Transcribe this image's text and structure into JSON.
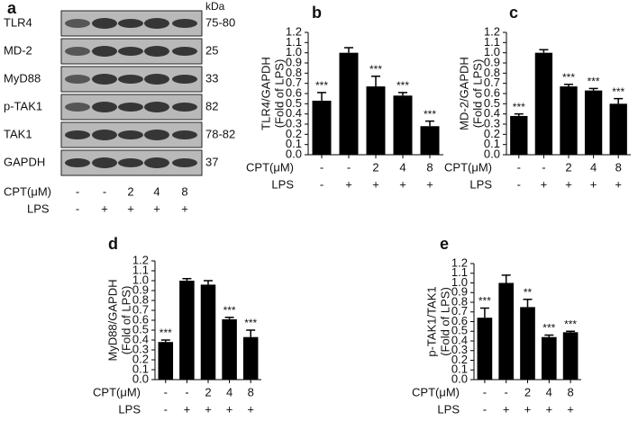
{
  "panel_a": {
    "letter": "a",
    "unit": "kDa",
    "rows": [
      {
        "name": "TLR4",
        "kda": "75-80"
      },
      {
        "name": "MD-2",
        "kda": "25"
      },
      {
        "name": "MyD88",
        "kda": "33"
      },
      {
        "name": "p-TAK1",
        "kda": "82"
      },
      {
        "name": "TAK1",
        "kda": "78-82"
      },
      {
        "name": "GAPDH",
        "kda": "37"
      }
    ],
    "cpt_label": "CPT(μM)",
    "cpt": [
      "-",
      "-",
      "2",
      "4",
      "8"
    ],
    "lps_label": "LPS",
    "lps": [
      "-",
      "+",
      "+",
      "+",
      "+"
    ]
  },
  "chart_data": [
    {
      "type": "bar",
      "letter": "b",
      "y_label": "TLR4/GAPDH",
      "y_label2": "(Fold of LPS)",
      "cpt_label": "CPT(μM)",
      "categories": [
        "-",
        "-",
        "2",
        "4",
        "8"
      ],
      "lps_label": "LPS",
      "lps": [
        "-",
        "+",
        "+",
        "+",
        "+"
      ],
      "values": [
        0.53,
        1.0,
        0.67,
        0.58,
        0.28
      ],
      "errors": [
        0.08,
        0.05,
        0.1,
        0.03,
        0.05
      ],
      "significance": [
        "***",
        null,
        "***",
        "***",
        "***"
      ],
      "color": "#000000",
      "ylim": [
        0,
        1.2
      ],
      "yticks": [
        {
          "value": 0,
          "label": "0.0"
        },
        0.1,
        0.2,
        0.3,
        0.4,
        0.5,
        0.6,
        0.7,
        0.8,
        0.9,
        {
          "value": 1,
          "label": "1.0"
        },
        1.1,
        1.2
      ]
    },
    {
      "type": "bar",
      "letter": "c",
      "y_label": "MD-2/GAPDH",
      "y_label2": "(Fold of LPS)",
      "cpt_label": "CPT(μM)",
      "categories": [
        "-",
        "-",
        "2",
        "4",
        "8"
      ],
      "lps_label": "LPS",
      "lps": [
        "-",
        "+",
        "+",
        "+",
        "+"
      ],
      "values": [
        0.38,
        1.0,
        0.67,
        0.63,
        0.5
      ],
      "errors": [
        0.02,
        0.03,
        0.02,
        0.02,
        0.05
      ],
      "significance": [
        "***",
        null,
        "***",
        "***",
        "***"
      ],
      "color": "#000000",
      "ylim": [
        0,
        1.2
      ],
      "yticks": [
        {
          "value": 0,
          "label": "0.0"
        },
        0.1,
        0.2,
        0.3,
        0.4,
        0.5,
        0.6,
        0.7,
        0.8,
        0.9,
        {
          "value": 1,
          "label": "1.0"
        },
        1.1,
        1.2
      ]
    },
    {
      "type": "bar",
      "letter": "d",
      "y_label": "MyD88/GAPDH",
      "y_label2": "(Fold of LPS)",
      "cpt_label": "CPT(μM)",
      "categories": [
        "-",
        "-",
        "2",
        "4",
        "8"
      ],
      "lps_label": "LPS",
      "lps": [
        "-",
        "+",
        "+",
        "+",
        "+"
      ],
      "values": [
        0.38,
        1.0,
        0.96,
        0.61,
        0.43
      ],
      "errors": [
        0.02,
        0.02,
        0.04,
        0.02,
        0.07
      ],
      "significance": [
        "***",
        null,
        null,
        "***",
        "***"
      ],
      "color": "#000000",
      "ylim": [
        0,
        1.2
      ],
      "yticks": [
        {
          "value": 0,
          "label": "0.0"
        },
        0.1,
        0.2,
        0.3,
        0.4,
        0.5,
        0.6,
        0.7,
        0.8,
        0.9,
        {
          "value": 1,
          "label": "1.0"
        },
        1.1,
        1.2
      ]
    },
    {
      "type": "bar",
      "letter": "e",
      "y_label": "p-TAK1/TAK1",
      "y_label2": "(Fold of LPS)",
      "cpt_label": "CPT(μM)",
      "categories": [
        "-",
        "-",
        "2",
        "4",
        "8"
      ],
      "lps_label": "LPS",
      "lps": [
        "-",
        "+",
        "+",
        "+",
        "+"
      ],
      "values": [
        0.64,
        1.0,
        0.75,
        0.44,
        0.49
      ],
      "errors": [
        0.1,
        0.08,
        0.08,
        0.02,
        0.01
      ],
      "significance": [
        "***",
        null,
        "**",
        "***",
        "***"
      ],
      "color": "#000000",
      "ylim": [
        0,
        1.2
      ],
      "yticks": [
        {
          "value": 0,
          "label": "0.0"
        },
        0.1,
        0.2,
        0.3,
        0.4,
        0.5,
        0.6,
        0.7,
        0.8,
        0.9,
        {
          "value": 1,
          "label": "1.0"
        },
        1.1,
        1.2
      ]
    }
  ]
}
